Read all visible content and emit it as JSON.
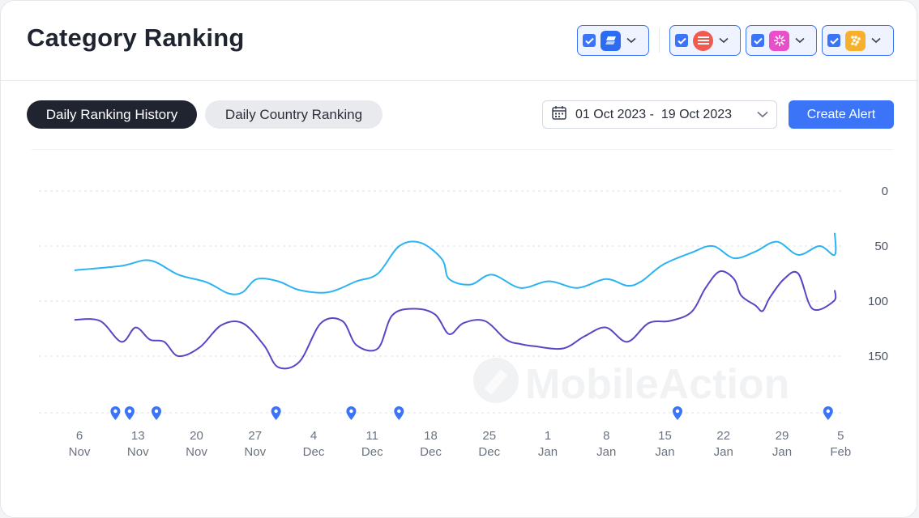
{
  "header": {
    "title": "Category Ranking"
  },
  "app_selectors": [
    {
      "name": "app-1",
      "checked": true,
      "icon": "blue-layers-app-icon",
      "color": "#2d6cf0"
    },
    {
      "name": "app-2",
      "checked": true,
      "icon": "red-stripes-app-icon",
      "color": "#f05a4f"
    },
    {
      "name": "app-3",
      "checked": true,
      "icon": "pink-sunburst-app-icon",
      "color": "#e84fc8"
    },
    {
      "name": "app-4",
      "checked": true,
      "icon": "orange-dots-app-icon",
      "color": "#f7b02c"
    }
  ],
  "tabs": [
    {
      "label": "Daily Ranking History",
      "active": true
    },
    {
      "label": "Daily Country Ranking",
      "active": false
    }
  ],
  "date_range": {
    "label": "01 Oct 2023 -  19 Oct 2023"
  },
  "actions": {
    "create_alert": "Create Alert"
  },
  "watermark": "MobileAction",
  "chart_data": {
    "type": "line",
    "y_axis": {
      "reversed": true,
      "ticks": [
        0,
        50,
        100,
        150
      ],
      "range": [
        0,
        200
      ]
    },
    "x_ticks": [
      {
        "day": "6",
        "month": "Nov"
      },
      {
        "day": "13",
        "month": "Nov"
      },
      {
        "day": "20",
        "month": "Nov"
      },
      {
        "day": "27",
        "month": "Nov"
      },
      {
        "day": "4",
        "month": "Dec"
      },
      {
        "day": "11",
        "month": "Dec"
      },
      {
        "day": "18",
        "month": "Dec"
      },
      {
        "day": "25",
        "month": "Dec"
      },
      {
        "day": "1",
        "month": "Jan"
      },
      {
        "day": "8",
        "month": "Jan"
      },
      {
        "day": "15",
        "month": "Jan"
      },
      {
        "day": "22",
        "month": "Jan"
      },
      {
        "day": "29",
        "month": "Jan"
      },
      {
        "day": "5",
        "month": "Feb"
      }
    ],
    "x_range_days": [
      -0.6,
      93.6
    ],
    "series": [
      {
        "color": "#2bb3f3",
        "points": [
          [
            -0.6,
            72
          ],
          [
            6,
            68
          ],
          [
            10,
            63
          ],
          [
            14,
            76
          ],
          [
            18,
            83
          ],
          [
            21,
            93
          ],
          [
            23,
            92
          ],
          [
            25,
            80
          ],
          [
            28,
            82
          ],
          [
            31,
            90
          ],
          [
            35,
            92
          ],
          [
            39,
            82
          ],
          [
            42,
            75
          ],
          [
            45,
            50
          ],
          [
            48,
            47
          ],
          [
            51,
            62
          ],
          [
            52,
            80
          ],
          [
            55,
            85
          ],
          [
            58,
            76
          ],
          [
            62,
            88
          ],
          [
            66,
            82
          ],
          [
            70,
            88
          ],
          [
            74,
            80
          ],
          [
            77,
            86
          ],
          [
            79,
            82
          ],
          [
            82,
            67
          ],
          [
            86,
            56
          ],
          [
            89,
            50
          ],
          [
            92,
            61
          ],
          [
            95,
            55
          ],
          [
            98,
            46
          ],
          [
            101,
            58
          ],
          [
            104,
            50
          ],
          [
            107,
            58
          ],
          [
            110,
            38
          ]
        ]
      },
      {
        "color": "#5a45c4",
        "points": [
          [
            -0.6,
            117
          ],
          [
            3,
            118
          ],
          [
            6,
            137
          ],
          [
            8,
            124
          ],
          [
            10,
            135
          ],
          [
            12,
            137
          ],
          [
            14,
            150
          ],
          [
            17,
            142
          ],
          [
            20,
            122
          ],
          [
            23,
            120
          ],
          [
            26,
            140
          ],
          [
            28,
            160
          ],
          [
            31,
            155
          ],
          [
            34,
            120
          ],
          [
            37,
            118
          ],
          [
            39,
            140
          ],
          [
            42,
            143
          ],
          [
            44,
            113
          ],
          [
            47,
            107
          ],
          [
            50,
            112
          ],
          [
            52,
            130
          ],
          [
            54,
            120
          ],
          [
            57,
            118
          ],
          [
            60,
            135
          ],
          [
            62,
            139
          ],
          [
            64,
            141
          ],
          [
            68,
            143
          ],
          [
            71,
            132
          ],
          [
            74,
            124
          ],
          [
            77,
            137
          ],
          [
            80,
            120
          ],
          [
            83,
            118
          ],
          [
            86,
            110
          ],
          [
            88,
            88
          ],
          [
            90,
            73
          ],
          [
            92,
            80
          ],
          [
            93,
            95
          ],
          [
            95,
            104
          ],
          [
            96,
            109
          ],
          [
            97,
            97
          ],
          [
            99,
            80
          ],
          [
            101,
            75
          ],
          [
            103,
            107
          ],
          [
            106,
            100
          ],
          [
            110,
            90
          ]
        ]
      }
    ],
    "markers_days": [
      4.3,
      6.0,
      9.2,
      23.5,
      32.5,
      38.2,
      71.5,
      89.5
    ]
  }
}
